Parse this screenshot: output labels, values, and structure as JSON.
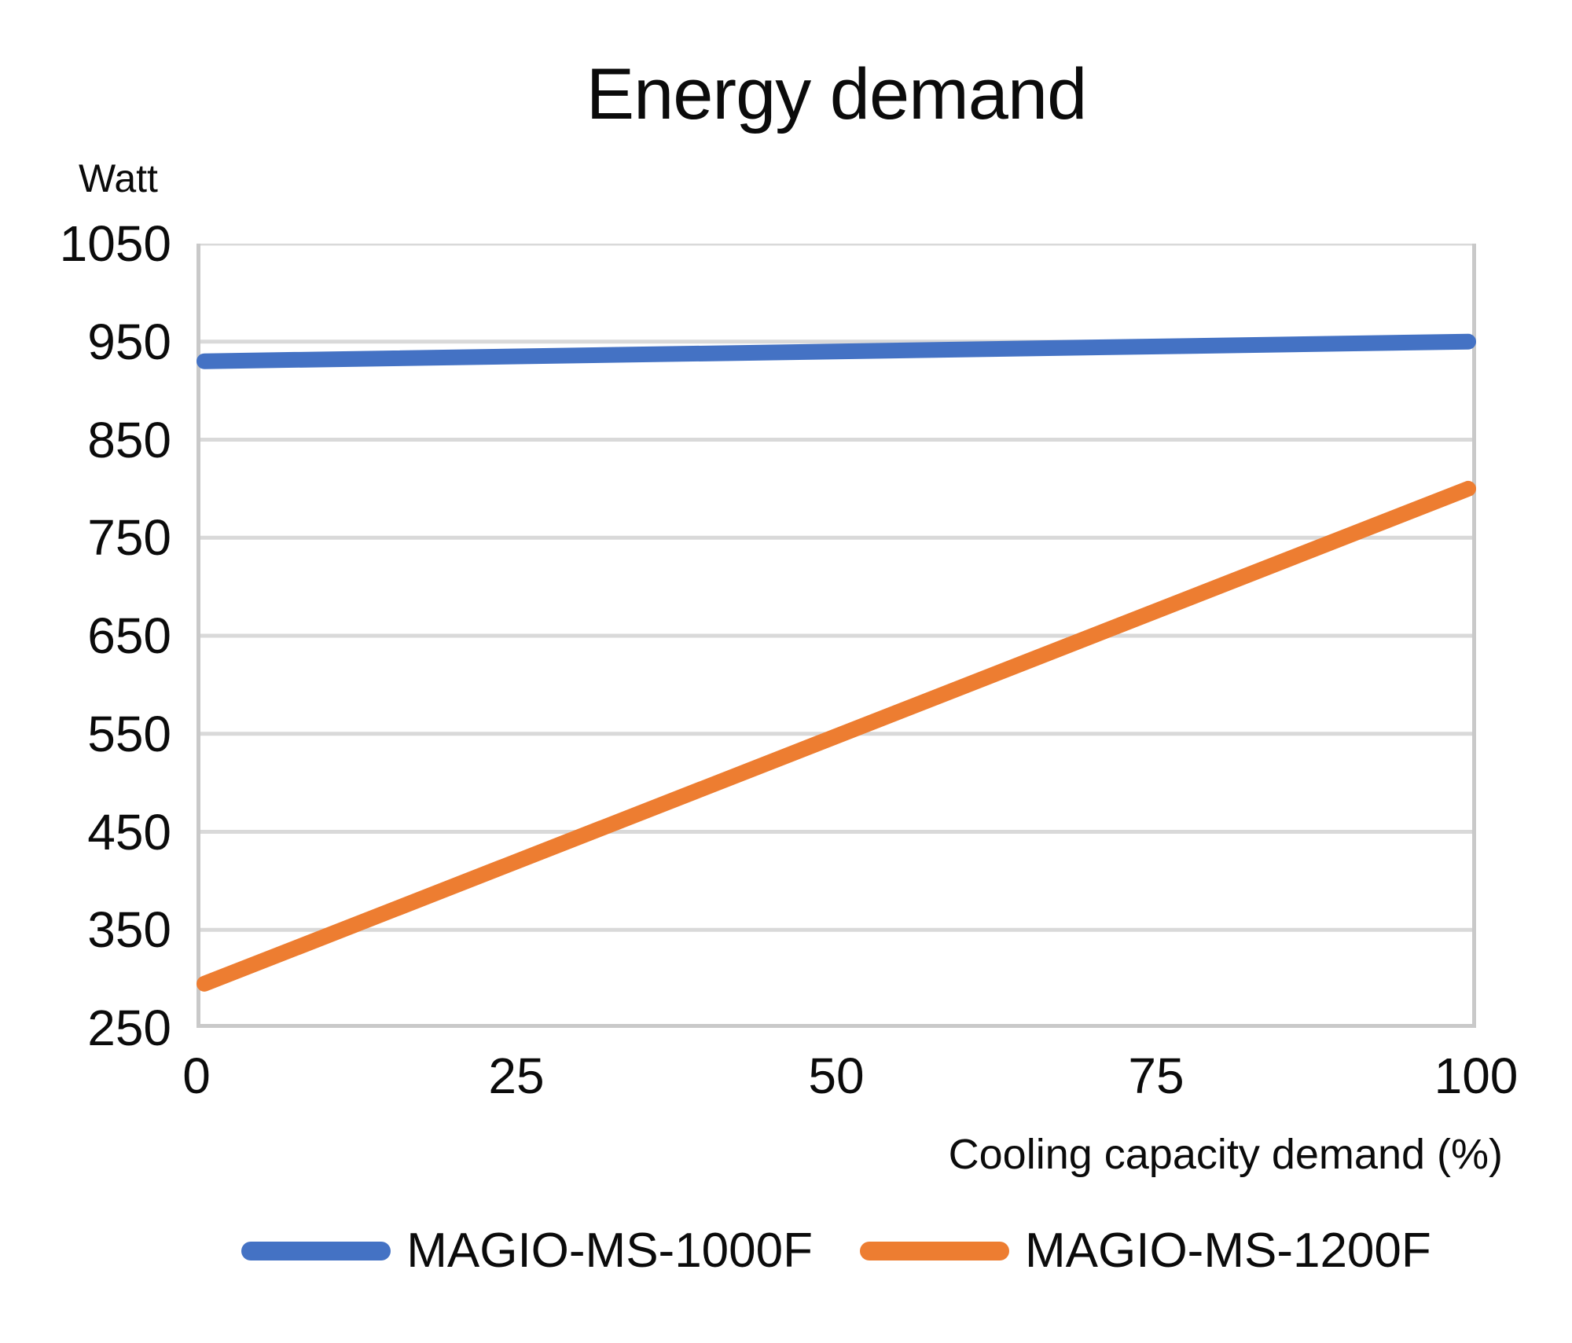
{
  "chart_data": {
    "type": "line",
    "title": "Energy demand",
    "y_axis_unit_label": "Watt",
    "xlabel": "Cooling capacity demand (%)",
    "ylabel": "Watt",
    "xlim": [
      0,
      100
    ],
    "ylim": [
      250,
      1050
    ],
    "x_ticks": [
      0,
      25,
      50,
      75,
      100
    ],
    "y_ticks": [
      250,
      350,
      450,
      550,
      650,
      750,
      850,
      950,
      1050
    ],
    "grid": "horizontal",
    "legend_position": "bottom-center",
    "x": [
      0,
      100
    ],
    "series": [
      {
        "name": "MAGIO-MS-1000F",
        "color": "#4472c4",
        "values": [
          930,
          950
        ]
      },
      {
        "name": "MAGIO-MS-1200F",
        "color": "#ed7d31",
        "values": [
          295,
          800
        ]
      }
    ]
  },
  "colors": {
    "background": "#ffffff",
    "gridline": "#d9d9d9",
    "axis_line": "#c9c9c9",
    "text": "#0b0b0b",
    "series_blue": "#4472c4",
    "series_orange": "#ed7d31"
  },
  "style": {
    "series_line_width": 20,
    "gridline_width": 5
  }
}
